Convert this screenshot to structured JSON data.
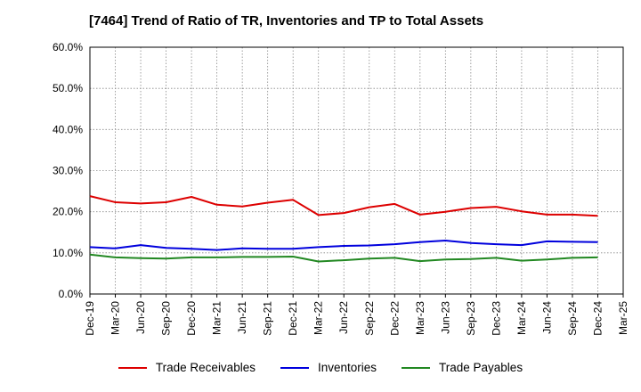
{
  "chart_data": {
    "type": "line",
    "title": "[7464]  Trend of Ratio of TR, Inventories and TP to Total Assets",
    "xlabel": "",
    "ylabel": "",
    "ylim": [
      0,
      60
    ],
    "y_ticks": [
      "0.0%",
      "10.0%",
      "20.0%",
      "30.0%",
      "40.0%",
      "50.0%",
      "60.0%"
    ],
    "grid": true,
    "legend_position": "bottom",
    "x_tick_labels": [
      "Dec-19",
      "Mar-20",
      "Jun-20",
      "Sep-20",
      "Dec-20",
      "Mar-21",
      "Jun-21",
      "Sep-21",
      "Dec-21",
      "Mar-22",
      "Jun-22",
      "Sep-22",
      "Dec-22",
      "Mar-23",
      "Jun-23",
      "Sep-23",
      "Dec-23",
      "Mar-24",
      "Jun-24",
      "Sep-24",
      "Dec-24",
      "Mar-25"
    ],
    "x": [
      "Dec-19",
      "Mar-20",
      "Jun-20",
      "Sep-20",
      "Dec-20",
      "Mar-21",
      "Jun-21",
      "Sep-21",
      "Dec-21",
      "Mar-22",
      "Jun-22",
      "Sep-22",
      "Dec-22",
      "Mar-23",
      "Jun-23",
      "Sep-23",
      "Dec-23",
      "Mar-24",
      "Jun-24",
      "Sep-24",
      "Dec-24"
    ],
    "series": [
      {
        "name": "Trade Receivables",
        "color": "#dd0000",
        "values": [
          23.8,
          22.3,
          22.0,
          22.3,
          23.6,
          21.7,
          21.3,
          22.2,
          22.9,
          19.2,
          19.7,
          21.1,
          21.9,
          19.3,
          20.0,
          20.9,
          21.2,
          20.1,
          19.3,
          19.3,
          19.0
        ]
      },
      {
        "name": "Inventories",
        "color": "#0000dd",
        "values": [
          11.4,
          11.1,
          11.9,
          11.2,
          11.0,
          10.7,
          11.1,
          11.0,
          11.0,
          11.4,
          11.7,
          11.8,
          12.1,
          12.6,
          13.0,
          12.4,
          12.1,
          11.9,
          12.8,
          12.7,
          12.6
        ]
      },
      {
        "name": "Trade Payables",
        "color": "#228822",
        "values": [
          9.6,
          8.9,
          8.7,
          8.6,
          8.9,
          8.9,
          9.0,
          9.0,
          9.1,
          7.9,
          8.2,
          8.6,
          8.8,
          8.0,
          8.4,
          8.5,
          8.8,
          8.1,
          8.4,
          8.8,
          8.9
        ]
      }
    ]
  }
}
